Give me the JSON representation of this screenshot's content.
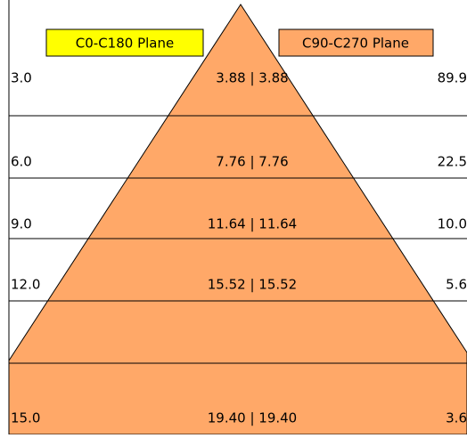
{
  "legend": {
    "left": "C0-C180 Plane",
    "right": "C90-C270 Plane"
  },
  "rows": [
    {
      "distance": "3.0",
      "diameter": "3.88 | 3.88",
      "illuminance": "89.9"
    },
    {
      "distance": "6.0",
      "diameter": "7.76 | 7.76",
      "illuminance": "22.5"
    },
    {
      "distance": "9.0",
      "diameter": "11.64 | 11.64",
      "illuminance": "10.0"
    },
    {
      "distance": "12.0",
      "diameter": "15.52 | 15.52",
      "illuminance": "5.6"
    },
    {
      "distance": "15.0",
      "diameter": "19.40 | 19.40",
      "illuminance": "3.6"
    }
  ]
}
